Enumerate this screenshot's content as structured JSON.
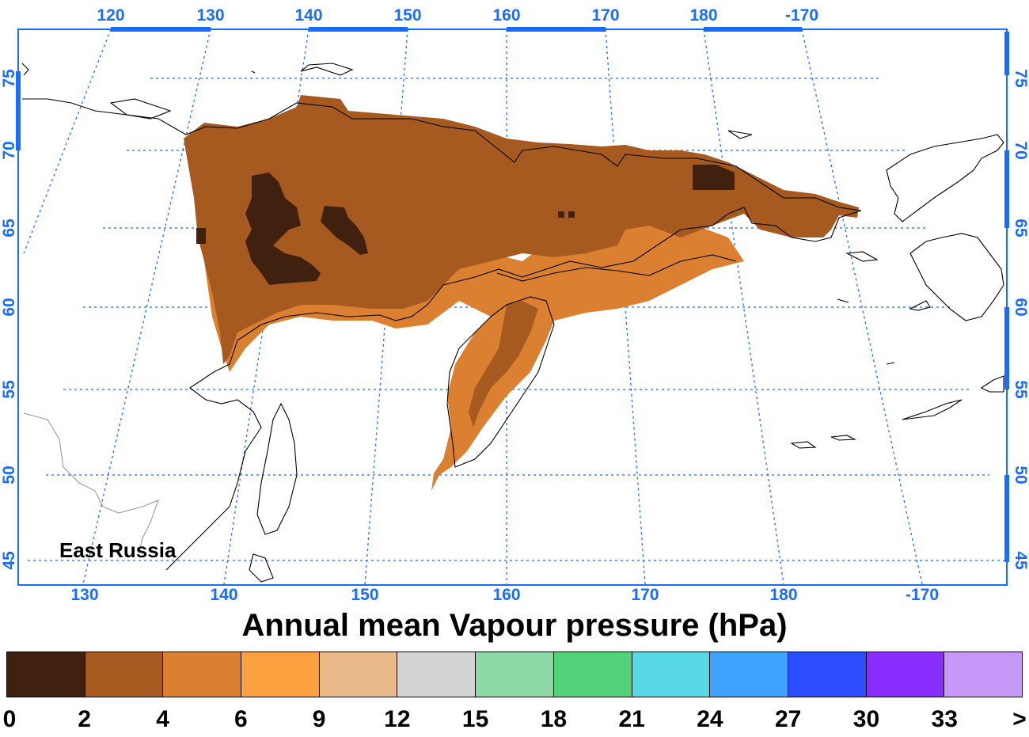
{
  "title": "Annual mean Vapour pressure (hPa)",
  "region_label": "East Russia",
  "top_lon_labels": [
    "120",
    "130",
    "140",
    "150",
    "160",
    "170",
    "180",
    "-170"
  ],
  "bottom_lon_labels": [
    "130",
    "140",
    "150",
    "160",
    "170",
    "180",
    "-170"
  ],
  "lat_labels": [
    "75",
    "70",
    "65",
    "60",
    "55",
    "50",
    "45"
  ],
  "legend": {
    "colors": [
      "#40200e",
      "#a65a20",
      "#db7f30",
      "#fca040",
      "#e9b98a",
      "#d3d3d3",
      "#8ed8a6",
      "#52d27a",
      "#57d8e6",
      "#3ea2ff",
      "#2a4eff",
      "#8a2eff",
      "#c898f8"
    ],
    "labels": [
      "0",
      "2",
      "4",
      "6",
      "9",
      "12",
      "15",
      "18",
      "21",
      "24",
      "27",
      "30",
      "33",
      ">"
    ]
  },
  "colors": {
    "axis": "#1a6cff",
    "grid": "#1a6cff"
  }
}
